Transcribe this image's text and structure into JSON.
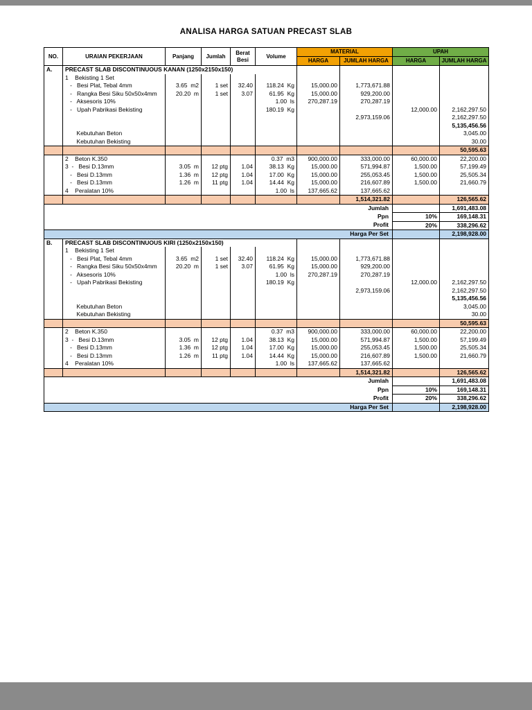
{
  "page": {
    "title": "ANALISA HARGA SATUAN PRECAST SLAB"
  },
  "colors": {
    "material_header": "#F2A104",
    "upah_header": "#70AD47",
    "subtotal_row": "#F8CBAD",
    "total_row": "#BDD7EE",
    "canvas": "#8a8a8a"
  },
  "table": {
    "headers": {
      "no": "NO.",
      "uraian": "URAIAN PEKERJAAN",
      "panjang": "Panjang",
      "jumlah": "Jumlah",
      "berat_besi": "Berat Besi",
      "volume": "Volume",
      "material": "MATERIAL",
      "upah": "UPAH",
      "harga": "HARGA",
      "jumlah_harga": "JUMLAH HARGA"
    },
    "sections": [
      {
        "rows": [
          {
            "t": "section",
            "no": "A.",
            "title": "PRECAST SLAB DISCONTINUOUS KANAN (1250x2150x150)"
          },
          {
            "t": "data",
            "c": [
              "",
              "1    Bekisting 1 Set",
              "",
              "",
              "",
              "",
              "",
              "",
              "",
              ""
            ]
          },
          {
            "t": "data",
            "c": [
              "",
              "   -   Besi Plat, Tebal 4mm",
              "3.65  m2",
              "1 set",
              "32.40",
              "118.24  Kg",
              "15,000.00",
              "1,773,671.88",
              "",
              ""
            ]
          },
          {
            "t": "data",
            "c": [
              "",
              "   -   Rangka Besi Siku 50x50x4mm",
              "20.20  m",
              "1 set",
              "3.07",
              "61.95  Kg",
              "15,000.00",
              "929,200.00",
              "",
              ""
            ]
          },
          {
            "t": "data",
            "c": [
              "",
              "   -   Aksesoris 10%",
              "",
              "",
              "",
              "1.00  ls",
              "270,287.19",
              "270,287.19",
              "",
              ""
            ]
          },
          {
            "t": "data",
            "c": [
              "",
              "   -   Upah Pabrikasi Bekisting",
              "",
              "",
              "",
              "180.19  Kg",
              "",
              "",
              "12,000.00",
              "2,162,297.50"
            ]
          },
          {
            "t": "data",
            "c": [
              "",
              "",
              "",
              "",
              "",
              "",
              "",
              "2,973,159.06",
              "",
              "2,162,297.50"
            ]
          },
          {
            "t": "data",
            "bold": true,
            "c": [
              "",
              "",
              "",
              "",
              "",
              "",
              "",
              "",
              "",
              "5,135,456.56"
            ]
          },
          {
            "t": "data",
            "c": [
              "",
              "       Kebutuhan Beton",
              "",
              "",
              "",
              "",
              "",
              "",
              "",
              "3,045.00"
            ]
          },
          {
            "t": "data",
            "c": [
              "",
              "       Kebutuhan Bekisting",
              "",
              "",
              "",
              "",
              "",
              "",
              "",
              "30.00"
            ]
          },
          {
            "t": "data",
            "cls": "peach",
            "c": [
              "",
              "",
              "",
              "",
              "",
              "",
              "",
              "",
              "",
              "50,595.63"
            ]
          },
          {
            "t": "data",
            "c": [
              "",
              "2    Beton K.350",
              "",
              "",
              "",
              "0.37  m3",
              "900,000.00",
              "333,000.00",
              "60,000.00",
              "22,200.00"
            ]
          },
          {
            "t": "data",
            "c": [
              "",
              "3  -   Besi D.13mm",
              "3.05  m",
              "12 ptg",
              "1.04",
              "38.13  Kg",
              "15,000.00",
              "571,994.87",
              "1,500.00",
              "57,199.49"
            ]
          },
          {
            "t": "data",
            "c": [
              "",
              "   -   Besi D.13mm",
              "1.36  m",
              "12 ptg",
              "1.04",
              "17.00  Kg",
              "15,000.00",
              "255,053.45",
              "1,500.00",
              "25,505.34"
            ]
          },
          {
            "t": "data",
            "c": [
              "",
              "   -   Besi D.13mm",
              "1.26  m",
              "11 ptg",
              "1.04",
              "14.44  Kg",
              "15,000.00",
              "216,607.89",
              "1,500.00",
              "21,660.79"
            ]
          },
          {
            "t": "data",
            "c": [
              "",
              "4    Peralatan 10%",
              "",
              "",
              "",
              "1.00  ls",
              "137,665.62",
              "137,665.62",
              "",
              ""
            ]
          },
          {
            "t": "data",
            "cls": "peach",
            "c": [
              "",
              "",
              "",
              "",
              "",
              "",
              "",
              "1,514,321.82",
              "",
              "126,565.62"
            ]
          },
          {
            "t": "summary",
            "label": "Jumlah",
            "pct": "",
            "value": "1,691,483.08"
          },
          {
            "t": "summary",
            "label": "Ppn",
            "pct": "10%",
            "value": "169,148.31"
          },
          {
            "t": "summary",
            "label": "Profit",
            "pct": "20%",
            "value": "338,296.62"
          },
          {
            "t": "summary",
            "cls": "blue",
            "label": "Harga Per Set",
            "pct": "",
            "value": "2,198,928.00"
          }
        ]
      },
      {
        "rows": [
          {
            "t": "section",
            "no": "B.",
            "title": "PRECAST SLAB DISCONTINUOUS KIRI (1250x2150x150)"
          },
          {
            "t": "data",
            "c": [
              "",
              "1    Bekisting 1 Set",
              "",
              "",
              "",
              "",
              "",
              "",
              "",
              ""
            ]
          },
          {
            "t": "data",
            "c": [
              "",
              "   -   Besi Plat, Tebal 4mm",
              "3.65  m2",
              "1 set",
              "32.40",
              "118.24  Kg",
              "15,000.00",
              "1,773,671.88",
              "",
              ""
            ]
          },
          {
            "t": "data",
            "c": [
              "",
              "   -   Rangka Besi Siku 50x50x4mm",
              "20.20  m",
              "1 set",
              "3.07",
              "61.95  Kg",
              "15,000.00",
              "929,200.00",
              "",
              ""
            ]
          },
          {
            "t": "data",
            "c": [
              "",
              "   -   Aksesoris 10%",
              "",
              "",
              "",
              "1.00  ls",
              "270,287.19",
              "270,287.19",
              "",
              ""
            ]
          },
          {
            "t": "data",
            "c": [
              "",
              "   -   Upah Pabrikasi Bekisting",
              "",
              "",
              "",
              "180.19  Kg",
              "",
              "",
              "12,000.00",
              "2,162,297.50"
            ]
          },
          {
            "t": "data",
            "c": [
              "",
              "",
              "",
              "",
              "",
              "",
              "",
              "2,973,159.06",
              "",
              "2,162,297.50"
            ]
          },
          {
            "t": "data",
            "bold": true,
            "c": [
              "",
              "",
              "",
              "",
              "",
              "",
              "",
              "",
              "",
              "5,135,456.56"
            ]
          },
          {
            "t": "data",
            "c": [
              "",
              "       Kebutuhan Beton",
              "",
              "",
              "",
              "",
              "",
              "",
              "",
              "3,045.00"
            ]
          },
          {
            "t": "data",
            "c": [
              "",
              "       Kebutuhan Bekisting",
              "",
              "",
              "",
              "",
              "",
              "",
              "",
              "30.00"
            ]
          },
          {
            "t": "data",
            "cls": "peach",
            "c": [
              "",
              "",
              "",
              "",
              "",
              "",
              "",
              "",
              "",
              "50,595.63"
            ]
          },
          {
            "t": "data",
            "c": [
              "",
              "2    Beton K.350",
              "",
              "",
              "",
              "0.37  m3",
              "900,000.00",
              "333,000.00",
              "60,000.00",
              "22,200.00"
            ]
          },
          {
            "t": "data",
            "c": [
              "",
              "3  -   Besi D.13mm",
              "3.05  m",
              "12 ptg",
              "1.04",
              "38.13  Kg",
              "15,000.00",
              "571,994.87",
              "1,500.00",
              "57,199.49"
            ]
          },
          {
            "t": "data",
            "c": [
              "",
              "   -   Besi D.13mm",
              "1.36  m",
              "12 ptg",
              "1.04",
              "17.00  Kg",
              "15,000.00",
              "255,053.45",
              "1,500.00",
              "25,505.34"
            ]
          },
          {
            "t": "data",
            "c": [
              "",
              "   -   Besi D.13mm",
              "1.26  m",
              "11 ptg",
              "1.04",
              "14.44  Kg",
              "15,000.00",
              "216,607.89",
              "1,500.00",
              "21,660.79"
            ]
          },
          {
            "t": "data",
            "c": [
              "",
              "4    Peralatan 10%",
              "",
              "",
              "",
              "1.00  ls",
              "137,665.62",
              "137,665.62",
              "",
              ""
            ]
          },
          {
            "t": "data",
            "cls": "peach",
            "c": [
              "",
              "",
              "",
              "",
              "",
              "",
              "",
              "1,514,321.82",
              "",
              "126,565.62"
            ]
          },
          {
            "t": "summary",
            "label": "Jumlah",
            "pct": "",
            "value": "1,691,483.08"
          },
          {
            "t": "summary",
            "label": "Ppn",
            "pct": "10%",
            "value": "169,148.31"
          },
          {
            "t": "summary",
            "label": "Profit",
            "pct": "20%",
            "value": "338,296.62"
          },
          {
            "t": "summary",
            "cls": "blue",
            "label": "Harga Per Set",
            "pct": "",
            "value": "2,198,928.00"
          }
        ]
      }
    ]
  }
}
